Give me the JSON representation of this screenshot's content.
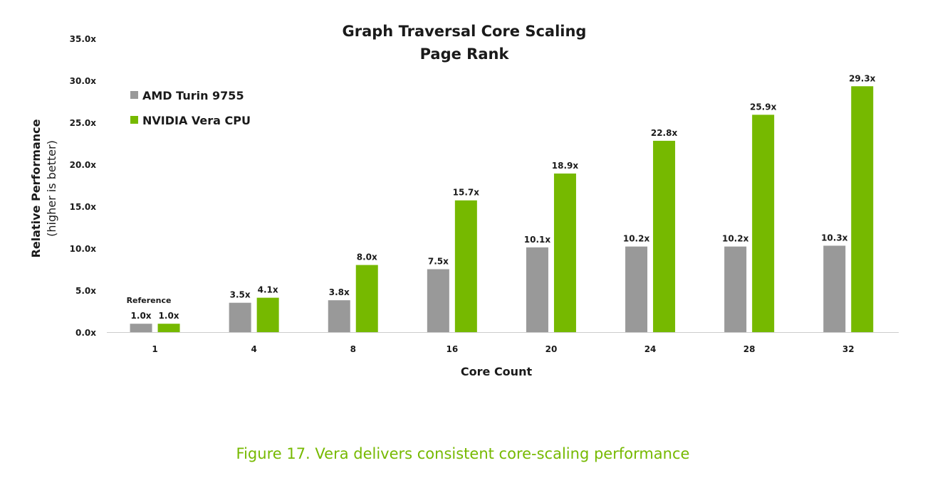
{
  "chart_data": {
    "type": "bar",
    "title": "Graph Traversal Core Scaling",
    "subtitle": "Page Rank",
    "xlabel": "Core Count",
    "ylabel": "Relative Performance",
    "ylabel_sub": "(higher is better)",
    "categories": [
      "1",
      "4",
      "8",
      "16",
      "20",
      "24",
      "28",
      "32"
    ],
    "ylim": [
      0,
      35
    ],
    "y_ticks": [
      0,
      5,
      10,
      15,
      20,
      25,
      30,
      35
    ],
    "y_tick_labels": [
      "0.0x",
      "5.0x",
      "10.0x",
      "15.0x",
      "20.0x",
      "25.0x",
      "30.0x",
      "35.0x"
    ],
    "grid": false,
    "legend_position": "top-left",
    "series": [
      {
        "name": "AMD Turin 9755",
        "color": "#999999",
        "values": [
          1.0,
          3.5,
          3.8,
          7.5,
          10.1,
          10.2,
          10.2,
          10.3
        ],
        "labels": [
          "1.0x",
          "3.5x",
          "3.8x",
          "7.5x",
          "10.1x",
          "10.2x",
          "10.2x",
          "10.3x"
        ]
      },
      {
        "name": "NVIDIA Vera CPU",
        "color": "#76b900",
        "values": [
          1.0,
          4.1,
          8.0,
          15.7,
          18.9,
          22.8,
          25.9,
          29.3
        ],
        "labels": [
          "1.0x",
          "4.1x",
          "8.0x",
          "15.7x",
          "18.9x",
          "22.8x",
          "25.9x",
          "29.3x"
        ]
      }
    ],
    "annotation": "Reference"
  },
  "caption": "Figure 17. Vera delivers consistent core-scaling performance",
  "colors": {
    "accent": "#76b900",
    "axis": "#cccccc",
    "text": "#1a1a1a"
  }
}
